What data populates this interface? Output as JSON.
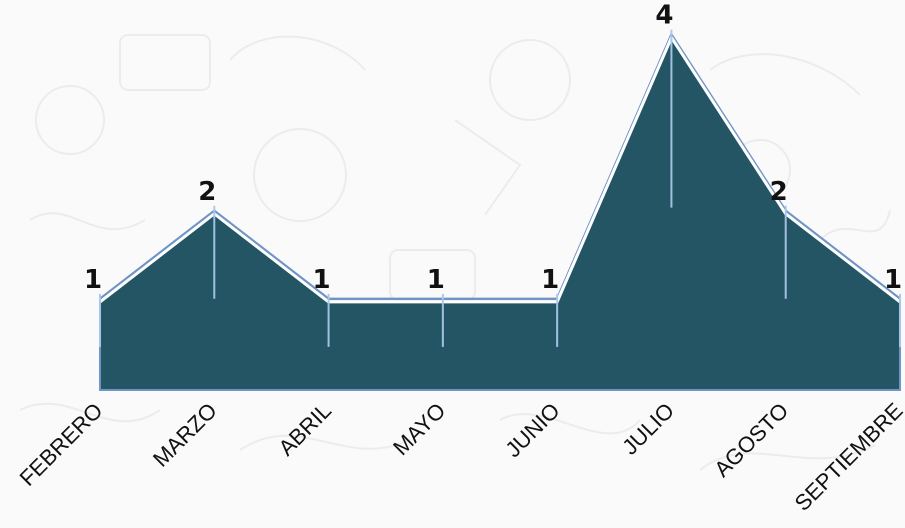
{
  "chart_data": {
    "type": "area",
    "categories": [
      "FEBRERO",
      "MARZO",
      "ABRIL",
      "MAYO",
      "JUNIO",
      "JULIO",
      "AGOSTO",
      "SEPTIEMBRE"
    ],
    "values": [
      1,
      2,
      1,
      1,
      1,
      4,
      2,
      1
    ],
    "title": "",
    "xlabel": "",
    "ylabel": "",
    "ylim": [
      0,
      4.2
    ],
    "grid": false,
    "legend": "none",
    "data_labels": true,
    "colors": {
      "fill": "#235564",
      "stroke": "#6f94c5",
      "inner_stroke": "#ffffff"
    }
  }
}
